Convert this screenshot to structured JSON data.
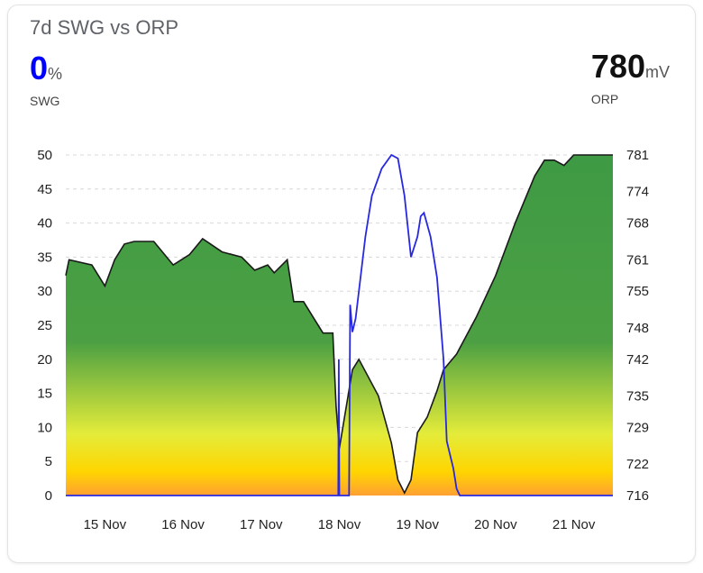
{
  "card": {
    "title": "7d SWG vs ORP",
    "swg": {
      "value": "0",
      "unit": "%",
      "label": "SWG",
      "color": "#0000ff"
    },
    "orp": {
      "value": "780",
      "unit": "mV",
      "label": "ORP",
      "color": "#111111"
    }
  },
  "chart_data": {
    "type": "line",
    "title": "7d SWG vs ORP",
    "x_ticks": [
      "15 Nov",
      "16 Nov",
      "17 Nov",
      "18 Nov",
      "19 Nov",
      "20 Nov",
      "21 Nov"
    ],
    "y_left": {
      "label": "SWG",
      "ticks": [
        0,
        5,
        10,
        15,
        20,
        25,
        30,
        35,
        40,
        45,
        50
      ],
      "range": [
        0,
        50
      ]
    },
    "y_right": {
      "label": "ORP",
      "ticks": [
        716,
        722,
        729,
        735,
        742,
        748,
        755,
        761,
        768,
        774,
        781
      ],
      "range": [
        716,
        781
      ]
    },
    "grid": true,
    "series": [
      {
        "name": "ORP",
        "axis": "right",
        "style": "area",
        "fill_gradient": [
          "#3e9a44",
          "#4ca043",
          "#e4ec3a",
          "#ffd500",
          "#ffa033"
        ],
        "line_color": "#1a1a1a",
        "points": [
          [
            "14 Nov 12:00",
            758
          ],
          [
            "14 Nov 13:00",
            761
          ],
          [
            "14 Nov 20:00",
            760
          ],
          [
            "15 Nov 00:00",
            756
          ],
          [
            "15 Nov 03:00",
            761
          ],
          [
            "15 Nov 06:00",
            764
          ],
          [
            "15 Nov 09:00",
            764.5
          ],
          [
            "15 Nov 15:00",
            764.5
          ],
          [
            "15 Nov 21:00",
            760
          ],
          [
            "16 Nov 02:00",
            762
          ],
          [
            "16 Nov 06:00",
            765
          ],
          [
            "16 Nov 12:00",
            762.5
          ],
          [
            "16 Nov 18:00",
            761.5
          ],
          [
            "16 Nov 22:00",
            759
          ],
          [
            "17 Nov 02:00",
            760
          ],
          [
            "17 Nov 04:00",
            758.5
          ],
          [
            "17 Nov 08:00",
            761
          ],
          [
            "17 Nov 10:00",
            753
          ],
          [
            "17 Nov 13:00",
            753
          ],
          [
            "17 Nov 16:00",
            750
          ],
          [
            "17 Nov 19:00",
            747
          ],
          [
            "17 Nov 22:00",
            747
          ],
          [
            "17 Nov 23:00",
            733
          ],
          [
            "18 Nov 00:00",
            725
          ],
          [
            "18 Nov 04:00",
            740
          ],
          [
            "18 Nov 06:00",
            742
          ],
          [
            "18 Nov 12:00",
            735
          ],
          [
            "18 Nov 16:00",
            726
          ],
          [
            "18 Nov 18:00",
            719
          ],
          [
            "18 Nov 20:00",
            716.5
          ],
          [
            "18 Nov 22:00",
            719
          ],
          [
            "19 Nov 00:00",
            728
          ],
          [
            "19 Nov 03:00",
            731
          ],
          [
            "19 Nov 06:00",
            736
          ],
          [
            "19 Nov 08:00",
            740
          ],
          [
            "19 Nov 12:00",
            743
          ],
          [
            "19 Nov 18:00",
            750
          ],
          [
            "20 Nov 00:00",
            758
          ],
          [
            "20 Nov 06:00",
            768
          ],
          [
            "20 Nov 12:00",
            777
          ],
          [
            "20 Nov 15:00",
            780
          ],
          [
            "20 Nov 18:00",
            780
          ],
          [
            "20 Nov 21:00",
            779
          ],
          [
            "21 Nov 00:00",
            781
          ],
          [
            "21 Nov 08:00",
            781
          ],
          [
            "21 Nov 12:00",
            781
          ]
        ]
      },
      {
        "name": "SWG",
        "axis": "left",
        "style": "line",
        "line_color": "#2828e0",
        "points": [
          [
            "14 Nov 12:00",
            0
          ],
          [
            "17 Nov 23:40",
            0
          ],
          [
            "17 Nov 23:50",
            20
          ],
          [
            "18 Nov 00:00",
            0
          ],
          [
            "18 Nov 03:00",
            0
          ],
          [
            "18 Nov 03:20",
            28
          ],
          [
            "18 Nov 04:00",
            24
          ],
          [
            "18 Nov 05:00",
            26
          ],
          [
            "18 Nov 06:00",
            30
          ],
          [
            "18 Nov 08:00",
            38
          ],
          [
            "18 Nov 10:00",
            44
          ],
          [
            "18 Nov 13:00",
            48
          ],
          [
            "18 Nov 16:00",
            50
          ],
          [
            "18 Nov 18:00",
            49.5
          ],
          [
            "18 Nov 20:00",
            44
          ],
          [
            "18 Nov 22:00",
            35
          ],
          [
            "19 Nov 00:00",
            38
          ],
          [
            "19 Nov 01:00",
            41
          ],
          [
            "19 Nov 02:00",
            41.5
          ],
          [
            "19 Nov 04:00",
            38
          ],
          [
            "19 Nov 06:00",
            32
          ],
          [
            "19 Nov 08:00",
            20
          ],
          [
            "19 Nov 09:00",
            8
          ],
          [
            "19 Nov 10:00",
            6
          ],
          [
            "19 Nov 11:00",
            4
          ],
          [
            "19 Nov 12:00",
            1
          ],
          [
            "19 Nov 13:00",
            0
          ],
          [
            "21 Nov 12:00",
            0
          ]
        ]
      }
    ]
  }
}
